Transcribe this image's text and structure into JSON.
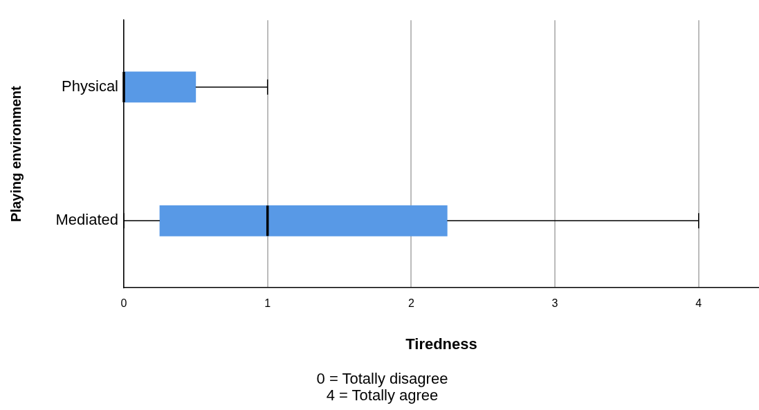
{
  "chart_data": {
    "type": "box",
    "orientation": "horizontal",
    "xlabel": "Tiredness",
    "ylabel": "Playing environment",
    "categories": [
      "Physical",
      "Mediated"
    ],
    "color": "#5899e6",
    "boxes": [
      {
        "low": 0,
        "q1": 0,
        "median": 0,
        "q3": 0.5,
        "high": 1
      },
      {
        "low": 0,
        "q1": 0.25,
        "median": 1,
        "q3": 2.25,
        "high": 4
      }
    ],
    "xlim": [
      0,
      4.42
    ],
    "xticks": [
      0,
      1,
      2,
      3,
      4
    ],
    "grid": "x",
    "annotations": [
      "0 = Totally disagree",
      "4 = Totally agree"
    ]
  }
}
